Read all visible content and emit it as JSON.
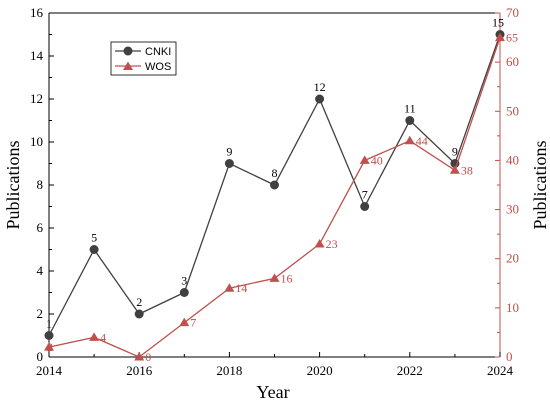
{
  "chart_data": {
    "type": "line",
    "x": [
      2014,
      2015,
      2016,
      2017,
      2018,
      2019,
      2020,
      2021,
      2022,
      2023,
      2024
    ],
    "xlabel": "Year",
    "xlim": [
      2014,
      2024
    ],
    "xticks": [
      2014,
      2016,
      2018,
      2020,
      2022,
      2024
    ],
    "y_left": {
      "label": "Publications",
      "lim": [
        0,
        16
      ],
      "ticks": [
        0,
        2,
        4,
        6,
        8,
        10,
        12,
        14,
        16
      ]
    },
    "y_right": {
      "label": "Publications",
      "lim": [
        0,
        70
      ],
      "ticks": [
        0,
        10,
        20,
        30,
        40,
        50,
        60,
        70
      ]
    },
    "legend_position": "top-left",
    "grid": false,
    "series": [
      {
        "name": "CNKI",
        "axis": "left",
        "marker": "circle",
        "color": "#404040",
        "values": [
          1,
          5,
          2,
          3,
          9,
          8,
          12,
          7,
          11,
          9,
          15
        ],
        "labels": [
          "1",
          "5",
          "2",
          "3",
          "9",
          "8",
          "12",
          "7",
          "11",
          "9",
          "15"
        ]
      },
      {
        "name": "WOS",
        "axis": "right",
        "marker": "triangle",
        "color": "#c0504d",
        "values": [
          2,
          4,
          0,
          7,
          14,
          16,
          23,
          40,
          44,
          38,
          65
        ],
        "labels": [
          "2",
          "4",
          "0",
          "7",
          "14",
          "16",
          "23",
          "40",
          "44",
          "38",
          "65"
        ]
      }
    ]
  },
  "colors": {
    "right_axis": "#c0504d",
    "left_axis": "#000000"
  }
}
